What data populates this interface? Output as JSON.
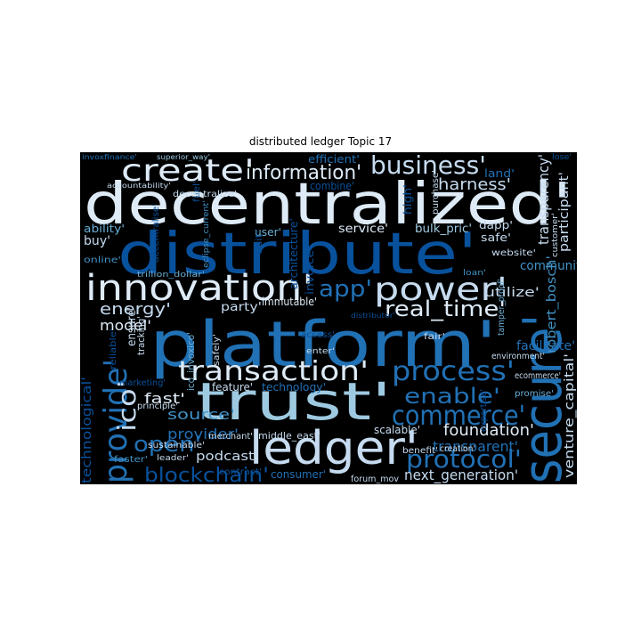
{
  "title": "distributed ledger Topic 17",
  "colors": {
    "background": "#000000",
    "palette": [
      "#08306b",
      "#08519c",
      "#2171b5",
      "#4292c6",
      "#6baed6",
      "#9ecae1",
      "#c6dbef",
      "#deebf7"
    ]
  },
  "words": [
    {
      "text": "decentralized'",
      "color": "#deebf7"
    },
    {
      "text": "distribute'",
      "color": "#08519c"
    },
    {
      "text": "platform'",
      "color": "#2171b5"
    },
    {
      "text": "trust'",
      "color": "#9ecae1"
    },
    {
      "text": "secure'",
      "color": "#2171b5"
    },
    {
      "text": "ledger'",
      "color": "#c6dbef"
    },
    {
      "text": "create'",
      "color": "#deebf7"
    },
    {
      "text": "innovation'",
      "color": "#deebf7"
    },
    {
      "text": "power'",
      "color": "#c6dbef"
    },
    {
      "text": "provide'",
      "color": "#2171b5"
    },
    {
      "text": "business'",
      "color": "#c6dbef"
    },
    {
      "text": "transaction'",
      "color": "#deebf7"
    },
    {
      "text": "process'",
      "color": "#2171b5"
    },
    {
      "text": "commerce'",
      "color": "#2171b5"
    },
    {
      "text": "protocol'",
      "color": "#2171b5"
    },
    {
      "text": "information'",
      "color": "#deebf7"
    },
    {
      "text": "app'",
      "color": "#2171b5"
    },
    {
      "text": "real_time'",
      "color": "#deebf7"
    },
    {
      "text": "enable'",
      "color": "#2171b5"
    },
    {
      "text": "open'",
      "color": "#2171b5"
    },
    {
      "text": "blockchain'",
      "color": "#08519c"
    },
    {
      "text": "ico'",
      "color": "#c6dbef"
    },
    {
      "text": "energy'",
      "color": "#c6dbef"
    },
    {
      "text": "transparency'",
      "color": "#c6dbef"
    },
    {
      "text": "harness'",
      "color": "#c6dbef"
    },
    {
      "text": "foundation'",
      "color": "#deebf7"
    },
    {
      "text": "transparent'",
      "color": "#2171b5"
    },
    {
      "text": "next_generation'",
      "color": "#c6dbef"
    },
    {
      "text": "source'",
      "color": "#4292c6"
    },
    {
      "text": "fast'",
      "color": "#deebf7"
    },
    {
      "text": "provider'",
      "color": "#2171b5"
    },
    {
      "text": "podcast'",
      "color": "#c6dbef"
    },
    {
      "text": "model'",
      "color": "#deebf7"
    },
    {
      "text": "community'",
      "color": "#4292c6"
    },
    {
      "text": "utilize'",
      "color": "#c6dbef"
    },
    {
      "text": "participant'",
      "color": "#c6dbef"
    },
    {
      "text": "venture_capital'",
      "color": "#c6dbef"
    },
    {
      "text": "robert_bosch'",
      "color": "#4292c6"
    },
    {
      "text": "facilitate'",
      "color": "#2171b5"
    },
    {
      "text": "technological'",
      "color": "#08519c"
    },
    {
      "text": "scalable'",
      "color": "#c6dbef"
    },
    {
      "text": "service'",
      "color": "#deebf7"
    },
    {
      "text": "bulk_pric'",
      "color": "#9ecae1"
    },
    {
      "text": "efficient'",
      "color": "#2171b5"
    },
    {
      "text": "land'",
      "color": "#2171b5"
    },
    {
      "text": "architecture'",
      "color": "#08519c"
    },
    {
      "text": "invoice'",
      "color": "#08519c"
    },
    {
      "text": "high'",
      "color": "#08519c"
    },
    {
      "text": "dapp'",
      "color": "#c6dbef"
    },
    {
      "text": "safe'",
      "color": "#c6dbef"
    },
    {
      "text": "website'",
      "color": "#c6dbef"
    },
    {
      "text": "customer'",
      "color": "#c6dbef"
    },
    {
      "text": "combine'",
      "color": "#08519c"
    },
    {
      "text": "purchase'",
      "color": "#c6dbef"
    },
    {
      "text": "fuel'",
      "color": "#08519c"
    },
    {
      "text": "user'",
      "color": "#6baed6"
    },
    {
      "text": "suit'",
      "color": "#08519c"
    },
    {
      "text": "ability'",
      "color": "#6baed6"
    },
    {
      "text": "buy'",
      "color": "#c6dbef"
    },
    {
      "text": "online'",
      "color": "#4292c6"
    },
    {
      "text": "trillion_dollar'",
      "color": "#6baed6"
    },
    {
      "text": "decentralize'",
      "color": "#c6dbef"
    },
    {
      "text": "accountability'",
      "color": "#c6dbef"
    },
    {
      "text": "decentralise'",
      "color": "#08519c"
    },
    {
      "text": "eclipse_current'",
      "color": "#4292c6"
    },
    {
      "text": "invoxfinance'",
      "color": "#2171b5"
    },
    {
      "text": "superior_way'",
      "color": "#9ecae1"
    },
    {
      "text": "lose'",
      "color": "#08519c"
    },
    {
      "text": "party'",
      "color": "#c6dbef"
    },
    {
      "text": "immutable'",
      "color": "#deebf7"
    },
    {
      "text": "ensure'",
      "color": "#c6dbef"
    },
    {
      "text": "tracking'",
      "color": "#c6dbef"
    },
    {
      "text": "reliable'",
      "color": "#08519c"
    },
    {
      "text": "ico_invoxico'",
      "color": "#6baed6"
    },
    {
      "text": "safely'",
      "color": "#c6dbef"
    },
    {
      "text": "access'",
      "color": "#08519c"
    },
    {
      "text": "enter'",
      "color": "#c6dbef"
    },
    {
      "text": "distributor'",
      "color": "#08519c"
    },
    {
      "text": "fair'",
      "color": "#c6dbef"
    },
    {
      "text": "loan'",
      "color": "#4292c6"
    },
    {
      "text": "tamper_proof'",
      "color": "#6baed6"
    },
    {
      "text": "environment'",
      "color": "#c6dbef"
    },
    {
      "text": "ecommerce'",
      "color": "#c6dbef"
    },
    {
      "text": "promise'",
      "color": "#6baed6"
    },
    {
      "text": "expertise'",
      "color": "#08519c"
    },
    {
      "text": "feature'",
      "color": "#c6dbef"
    },
    {
      "text": "technology'",
      "color": "#2171b5"
    },
    {
      "text": "principle'",
      "color": "#c6dbef"
    },
    {
      "text": "marketing'",
      "color": "#08519c"
    },
    {
      "text": "merchant'",
      "color": "#c6dbef"
    },
    {
      "text": "middle_east'",
      "color": "#c6dbef"
    },
    {
      "text": "sustainable'",
      "color": "#c6dbef"
    },
    {
      "text": "leader'",
      "color": "#c6dbef"
    },
    {
      "text": "faster'",
      "color": "#4292c6"
    },
    {
      "text": "contract'",
      "color": "#08519c"
    },
    {
      "text": "consumer'",
      "color": "#2171b5"
    },
    {
      "text": "benefit'",
      "color": "#c6dbef"
    },
    {
      "text": "creation'",
      "color": "#c6dbef"
    },
    {
      "text": "forum_mov",
      "color": "#c6dbef"
    }
  ]
}
